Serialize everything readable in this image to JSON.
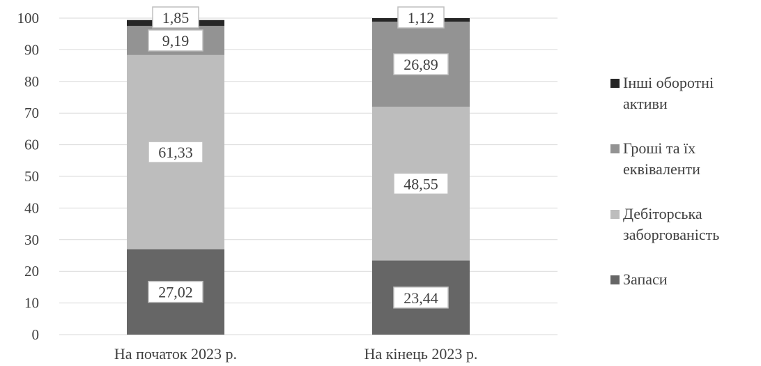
{
  "chart_data": {
    "type": "bar",
    "stacked": true,
    "categories": [
      "На початок  2023 р.",
      "На кінець 2023 р."
    ],
    "series": [
      {
        "name": "Запаси",
        "values": [
          27.02,
          23.44
        ],
        "labels": [
          "27,02",
          "23,44"
        ],
        "color": "#666666"
      },
      {
        "name": "Дебіторська заборгованість",
        "values": [
          61.33,
          48.55
        ],
        "labels": [
          "61,33",
          "48,55"
        ],
        "color": "#bdbdbd"
      },
      {
        "name": "Гроші та їх еквіваленти",
        "values": [
          9.19,
          26.89
        ],
        "labels": [
          "9,19",
          "26,89"
        ],
        "color": "#939393"
      },
      {
        "name": "Інші оборотні активи",
        "values": [
          1.85,
          1.12
        ],
        "labels": [
          "1,85",
          "1,12"
        ],
        "color": "#262626"
      }
    ],
    "legend": {
      "placement": "right",
      "order": [
        3,
        2,
        1,
        0
      ],
      "lines": [
        [
          "Інші оборотні",
          "активи"
        ],
        [
          "Гроші та їх",
          "еквіваленти"
        ],
        [
          "Дебіторська",
          "заборгованість"
        ],
        [
          "Запаси"
        ]
      ]
    },
    "y_ticks": [
      "0",
      "10",
      "20",
      "30",
      "40",
      "50",
      "60",
      "70",
      "80",
      "90",
      "100"
    ],
    "ylim": [
      0,
      100
    ],
    "grid": true,
    "xlabel": "",
    "ylabel": "",
    "title": ""
  }
}
